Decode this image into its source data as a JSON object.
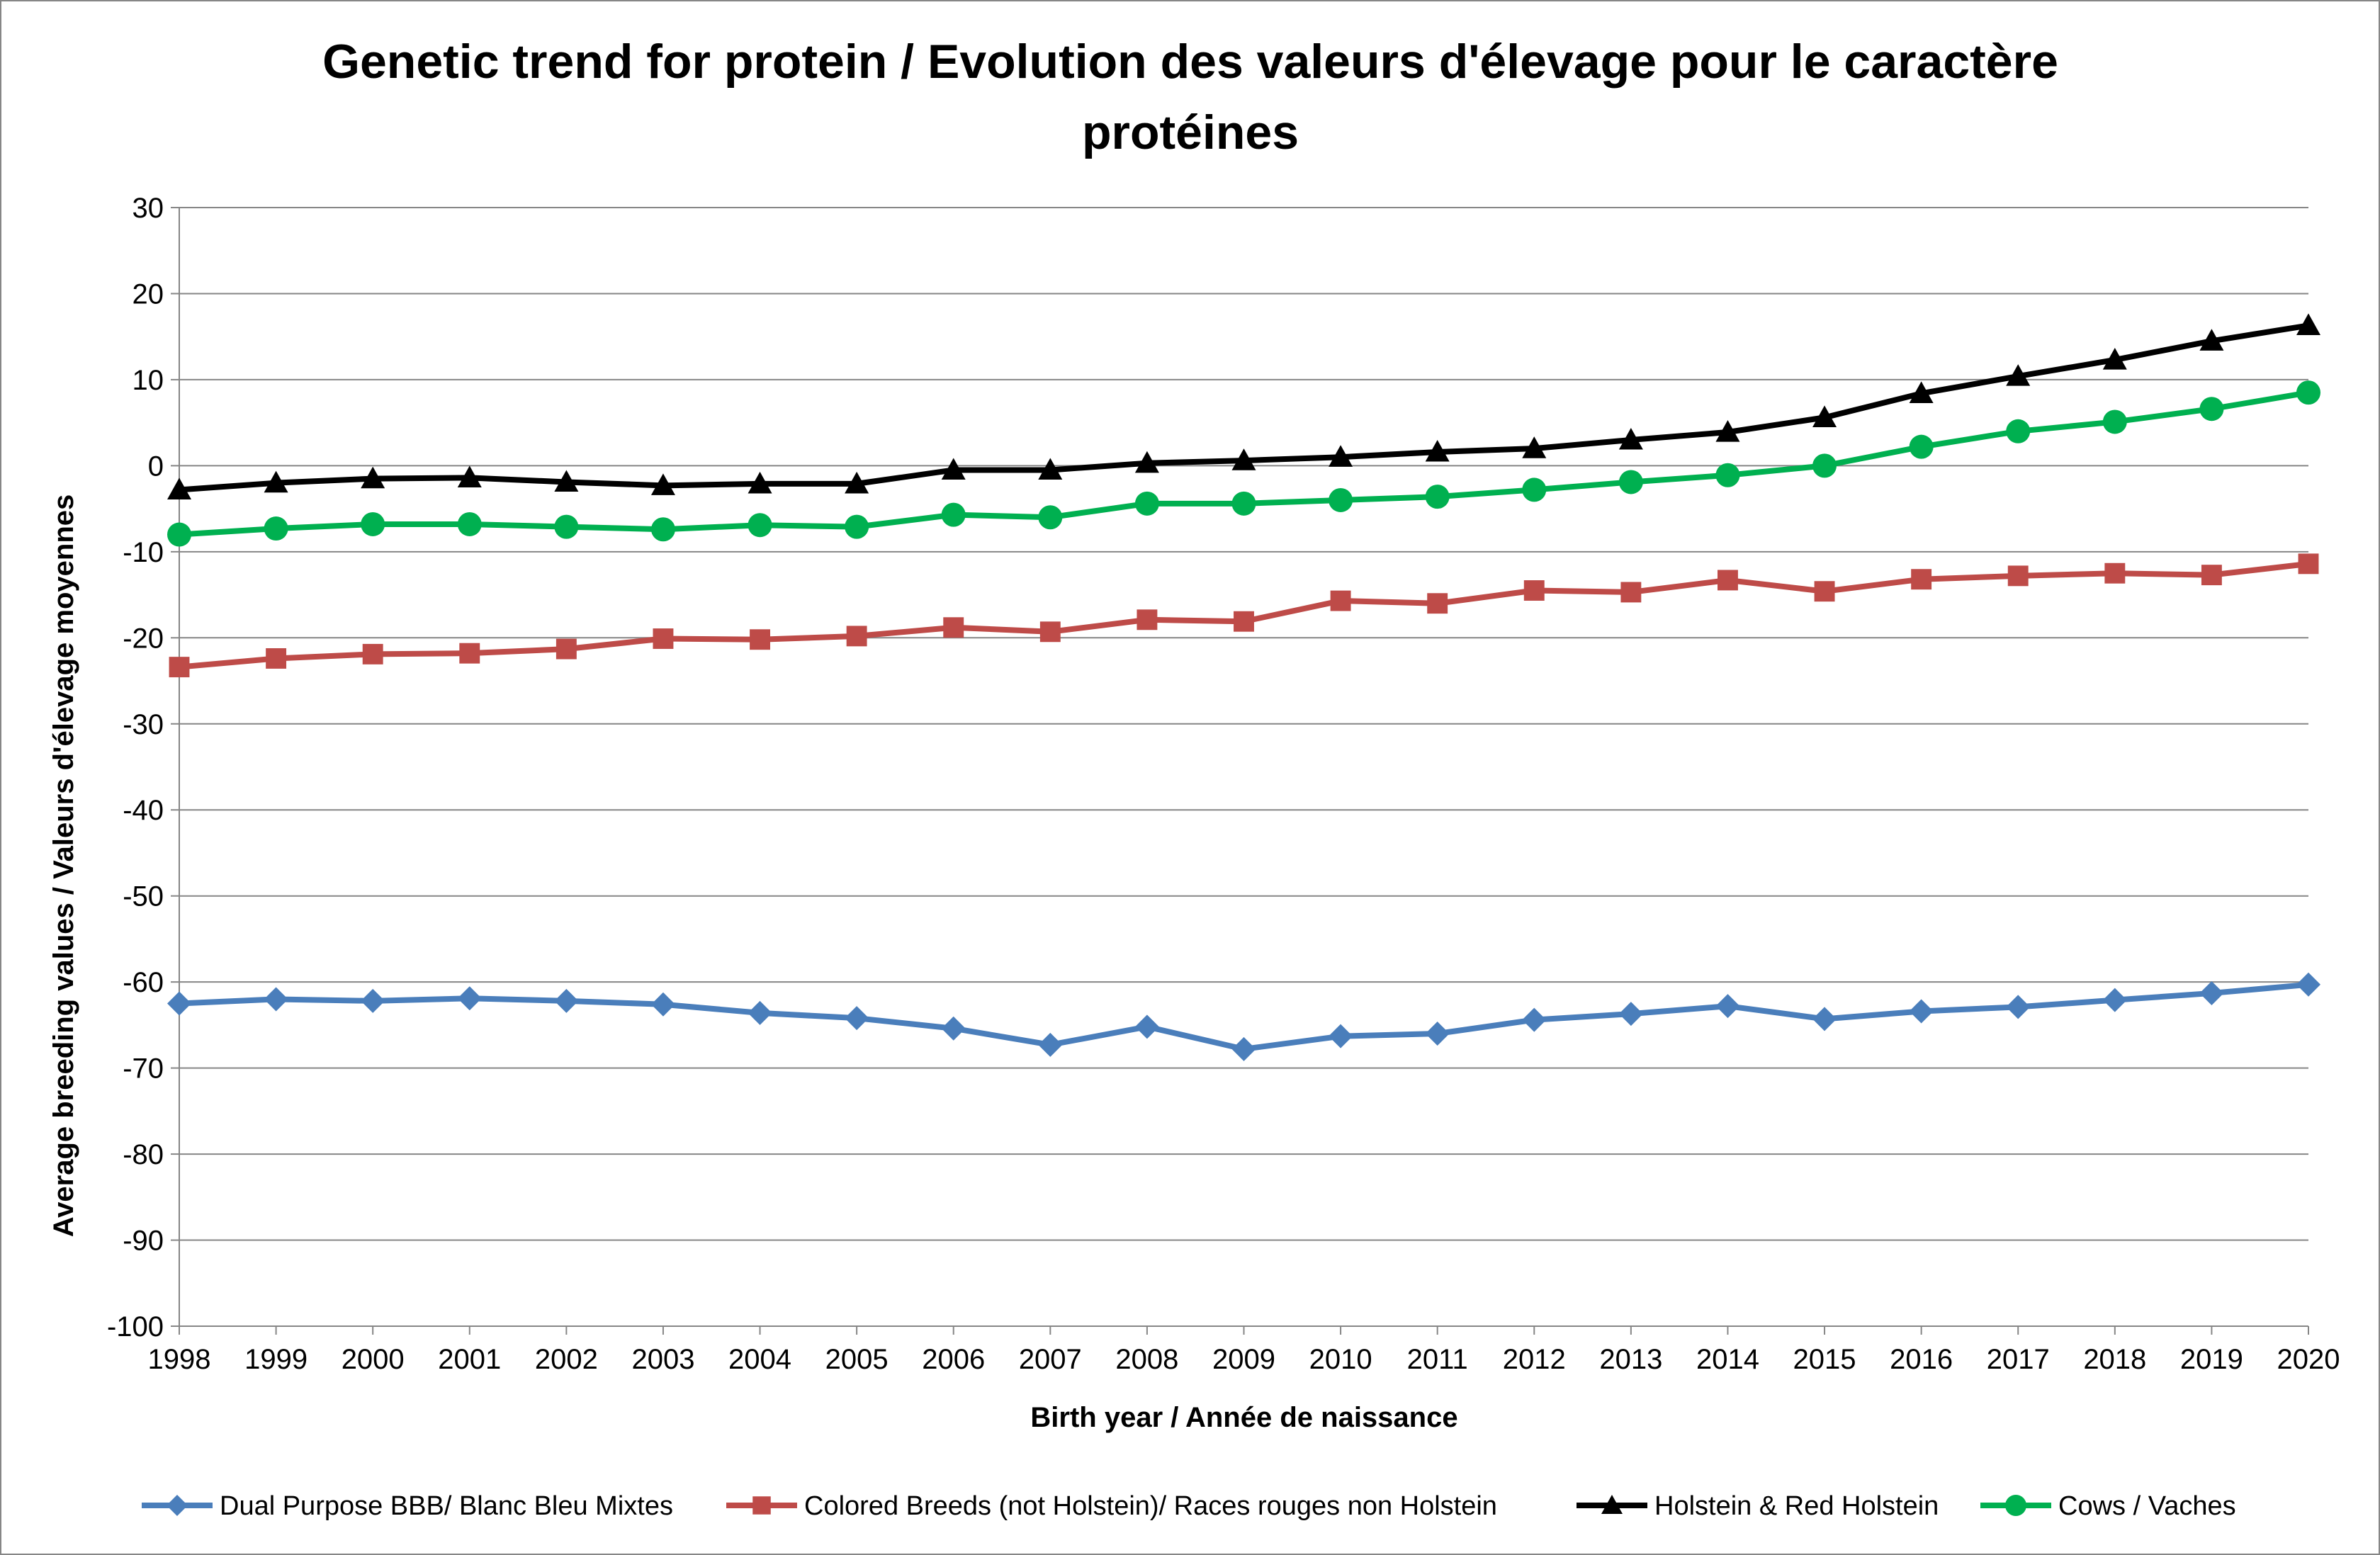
{
  "chart_data": {
    "type": "line",
    "title_line1": "Genetic trend for protein / Evolution des valeurs d'élevage pour le caractère",
    "title_line2": "protéines",
    "xlabel": "Birth year / Année de naissance",
    "ylabel": "Average breeding values  / Valeurs d'élevage moyennes",
    "ylim": [
      -100,
      30
    ],
    "ytick_step": 10,
    "yticks": [
      "30",
      "20",
      "10",
      "0",
      "-10",
      "-20",
      "-30",
      "-40",
      "-50",
      "-60",
      "-70",
      "-80",
      "-90",
      "-100"
    ],
    "grid": "horizontal",
    "legend_position": "bottom",
    "categories": [
      "1998",
      "1999",
      "2000",
      "2001",
      "2002",
      "2003",
      "2004",
      "2005",
      "2006",
      "2007",
      "2008",
      "2009",
      "2010",
      "2011",
      "2012",
      "2013",
      "2014",
      "2015",
      "2016",
      "2017",
      "2018",
      "2019",
      "2020"
    ],
    "series": [
      {
        "name": "Dual Purpose BBB/ Blanc Bleu Mixtes",
        "color": "#4a7ebb",
        "marker": "diamond",
        "values": [
          -62.5,
          -62.0,
          -62.2,
          -61.9,
          -62.2,
          -62.6,
          -63.6,
          -64.2,
          -65.4,
          -67.3,
          -65.2,
          -67.8,
          -66.3,
          -66.0,
          -64.4,
          -63.7,
          -62.8,
          -64.3,
          -63.4,
          -62.9,
          -62.1,
          -61.3,
          -60.3
        ]
      },
      {
        "name": "Colored Breeds (not Holstein)/ Races rouges non Holstein",
        "color": "#be4b48",
        "marker": "square",
        "values": [
          -23.4,
          -22.4,
          -21.9,
          -21.8,
          -21.3,
          -20.1,
          -20.2,
          -19.8,
          -18.8,
          -19.3,
          -17.9,
          -18.1,
          -15.7,
          -16.0,
          -14.5,
          -14.7,
          -13.3,
          -14.6,
          -13.2,
          -12.8,
          -12.5,
          -12.7,
          -11.4
        ]
      },
      {
        "name": "Holstein & Red Holstein",
        "color": "#000000",
        "marker": "triangle",
        "values": [
          -2.8,
          -2.0,
          -1.5,
          -1.4,
          -1.9,
          -2.3,
          -2.1,
          -2.1,
          -0.5,
          -0.5,
          0.3,
          0.6,
          1.0,
          1.6,
          2.0,
          3.0,
          3.9,
          5.6,
          8.4,
          10.4,
          12.3,
          14.5,
          16.3
        ]
      },
      {
        "name": "Cows / Vaches",
        "color": "#00b050",
        "marker": "circle",
        "values": [
          -8.0,
          -7.3,
          -6.8,
          -6.8,
          -7.1,
          -7.4,
          -6.9,
          -7.1,
          -5.7,
          -6.0,
          -4.4,
          -4.4,
          -4.0,
          -3.6,
          -2.8,
          -1.9,
          -1.1,
          0.0,
          2.2,
          4.0,
          5.1,
          6.6,
          8.5
        ]
      }
    ]
  }
}
